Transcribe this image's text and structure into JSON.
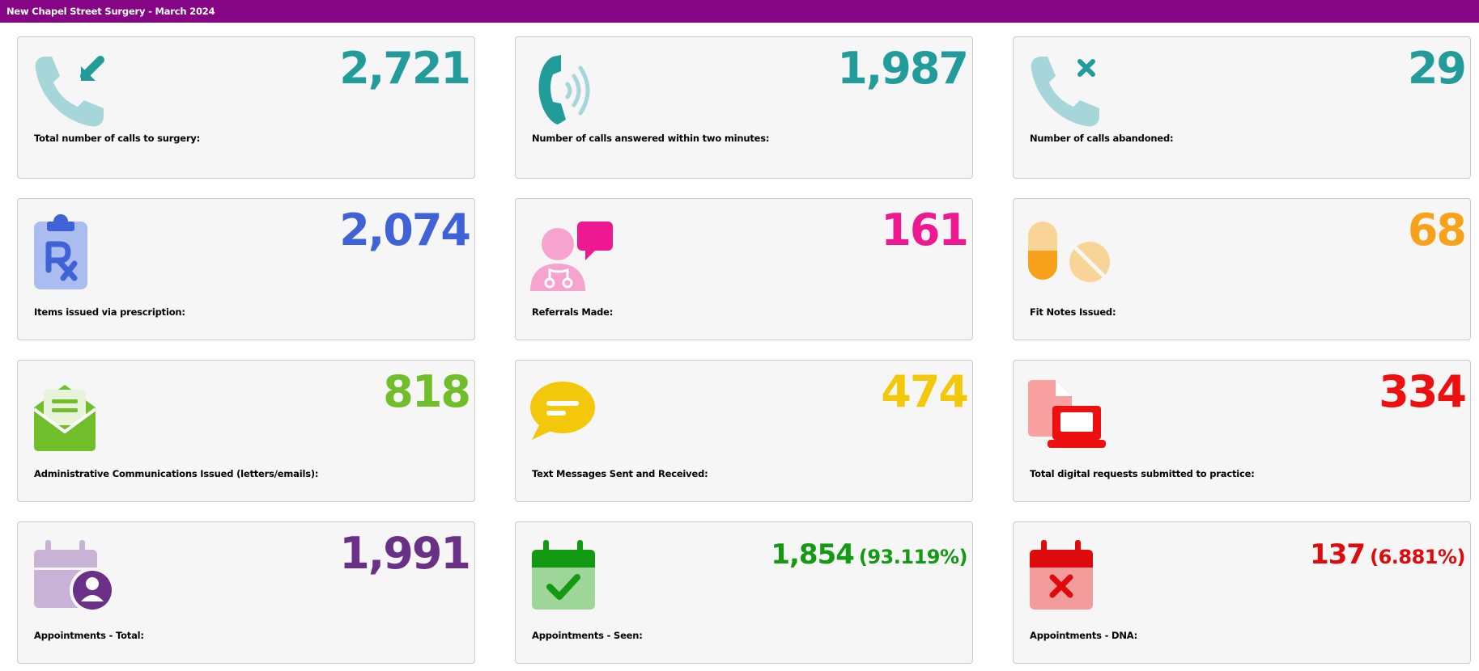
{
  "header": {
    "title": "New Chapel Street Surgery - March 2024"
  },
  "cards": [
    {
      "value": "2,721",
      "label": "Total number of calls to surgery:",
      "color": "#229b9b",
      "icon": "phone-incoming-icon"
    },
    {
      "value": "1,987",
      "label": "Number of calls answered within two minutes:",
      "color": "#229b9b",
      "icon": "phone-ringing-icon"
    },
    {
      "value": "29",
      "label": "Number of calls abandoned:",
      "color": "#229b9b",
      "icon": "phone-missed-icon"
    },
    {
      "value": "2,074",
      "label": "Items issued via prescription:",
      "color": "#3f62d6",
      "icon": "prescription-clipboard-icon"
    },
    {
      "value": "161",
      "label": "Referrals Made:",
      "color": "#ee1890",
      "icon": "doctor-message-icon"
    },
    {
      "value": "68",
      "label": "Fit Notes Issued:",
      "color": "#f7a21a",
      "icon": "pills-icon"
    },
    {
      "value": "818",
      "label": "Administrative Communications Issued (letters/emails):",
      "color": "#6fbe2a",
      "icon": "open-envelope-icon"
    },
    {
      "value": "474",
      "label": "Text Messages Sent and Received:",
      "color": "#f4c80a",
      "icon": "chat-bubble-icon"
    },
    {
      "value": "334",
      "label": "Total digital requests submitted to practice:",
      "color": "#ee1010",
      "icon": "digital-request-icon"
    },
    {
      "value": "1,991",
      "label": "Appointments - Total:",
      "color": "#6a3088",
      "icon": "calendar-user-icon"
    },
    {
      "value": "1,854",
      "pct": "(93.119%)",
      "label": "Appointments - Seen:",
      "color": "#129a12",
      "icon": "calendar-check-icon"
    },
    {
      "value": "137",
      "pct": "(6.881%)",
      "label": "Appointments - DNA:",
      "color": "#dd0b0b",
      "icon": "calendar-cross-icon"
    }
  ]
}
